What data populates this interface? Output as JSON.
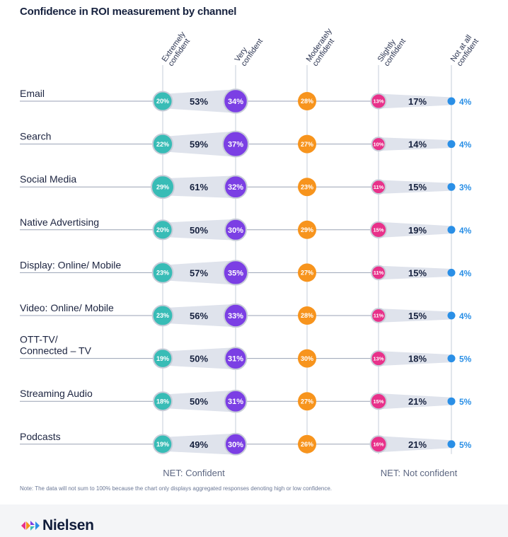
{
  "title": "Confidence in ROI measurement by channel",
  "note": "Note: The data will not sum to 100% because the chart only displays aggregated responses denoting high or low confidence.",
  "brand": "Nielsen",
  "colors": {
    "extremely": "#38bcb6",
    "very": "#7b3fe4",
    "moderately": "#f7941d",
    "slightly": "#e8318a",
    "not_at_all": "#2a8fe6",
    "band": "#dfe3ec",
    "text_dark": "#16213e"
  },
  "chart_data": {
    "type": "dot-matrix",
    "columns": [
      {
        "key": "extremely",
        "label_lines": [
          "Extremely",
          "confident"
        ]
      },
      {
        "key": "very",
        "label_lines": [
          "Very",
          "confident"
        ]
      },
      {
        "key": "moderately",
        "label_lines": [
          "Moderately",
          "confident"
        ]
      },
      {
        "key": "slightly",
        "label_lines": [
          "Slightly",
          "confident"
        ]
      },
      {
        "key": "not_at_all",
        "label_lines": [
          "Not at all",
          "confident"
        ]
      }
    ],
    "net_labels": {
      "confident": "NET: Confident",
      "not_confident": "NET: Not confident"
    },
    "rows": [
      {
        "channel_lines": [
          "Email"
        ],
        "extremely": 20,
        "very": 34,
        "net_confident": 53,
        "moderately": 28,
        "slightly": 13,
        "not_at_all": 4,
        "net_not_confident": 17
      },
      {
        "channel_lines": [
          "Search"
        ],
        "extremely": 22,
        "very": 37,
        "net_confident": 59,
        "moderately": 27,
        "slightly": 10,
        "not_at_all": 4,
        "net_not_confident": 14
      },
      {
        "channel_lines": [
          "Social Media"
        ],
        "extremely": 29,
        "very": 32,
        "net_confident": 61,
        "moderately": 23,
        "slightly": 11,
        "not_at_all": 3,
        "net_not_confident": 15
      },
      {
        "channel_lines": [
          "Native Advertising"
        ],
        "extremely": 20,
        "very": 30,
        "net_confident": 50,
        "moderately": 29,
        "slightly": 15,
        "not_at_all": 4,
        "net_not_confident": 19
      },
      {
        "channel_lines": [
          "Display: Online/ Mobile"
        ],
        "extremely": 23,
        "very": 35,
        "net_confident": 57,
        "moderately": 27,
        "slightly": 11,
        "not_at_all": 4,
        "net_not_confident": 15
      },
      {
        "channel_lines": [
          "Video: Online/ Mobile"
        ],
        "extremely": 23,
        "very": 33,
        "net_confident": 56,
        "moderately": 28,
        "slightly": 11,
        "not_at_all": 4,
        "net_not_confident": 15
      },
      {
        "channel_lines": [
          "OTT-TV/",
          "Connected – TV"
        ],
        "extremely": 19,
        "very": 31,
        "net_confident": 50,
        "moderately": 30,
        "slightly": 13,
        "not_at_all": 5,
        "net_not_confident": 18
      },
      {
        "channel_lines": [
          "Streaming Audio"
        ],
        "extremely": 18,
        "very": 31,
        "net_confident": 50,
        "moderately": 27,
        "slightly": 15,
        "not_at_all": 5,
        "net_not_confident": 21
      },
      {
        "channel_lines": [
          "Podcasts"
        ],
        "extremely": 19,
        "very": 30,
        "net_confident": 49,
        "moderately": 26,
        "slightly": 16,
        "not_at_all": 5,
        "net_not_confident": 21
      }
    ]
  }
}
